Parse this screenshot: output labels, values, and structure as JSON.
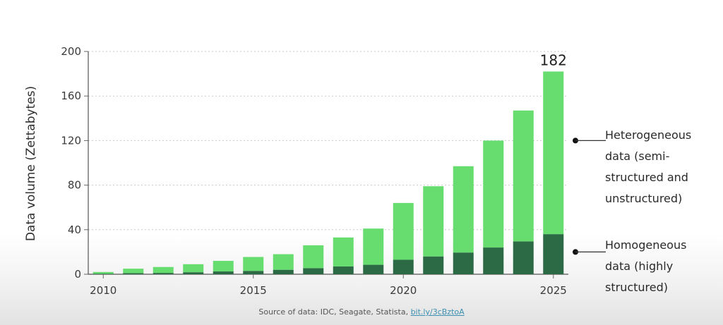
{
  "chart_data": {
    "type": "bar",
    "stacked": true,
    "ylabel": "Data volume (Zettabytes)",
    "xlabel": "",
    "ylim": [
      0,
      200
    ],
    "yticks": [
      0,
      40,
      80,
      120,
      160,
      200
    ],
    "grid": true,
    "x": [
      2010,
      2011,
      2012,
      2013,
      2014,
      2015,
      2016,
      2017,
      2018,
      2019,
      2020,
      2021,
      2022,
      2023,
      2024,
      2025
    ],
    "xticks": [
      "2010",
      "2015",
      "2020",
      "2025"
    ],
    "series": [
      {
        "name": "Homogeneous data (highly structured)",
        "color": "#2b6a44",
        "values": [
          0.5,
          1,
          1.2,
          1.8,
          2.5,
          3,
          4,
          5.5,
          7,
          8.5,
          13,
          16,
          19.5,
          24,
          29.5,
          36
        ]
      },
      {
        "name": "Heterogeneous data (semi-structured and unstructured)",
        "color": "#66dd6e",
        "values": [
          1.5,
          4,
          5.3,
          7.2,
          9.5,
          12.5,
          14,
          20.5,
          26,
          32.5,
          51,
          63,
          77.5,
          96,
          117.5,
          146
        ]
      }
    ],
    "totals": [
      2,
      5,
      6.5,
      9,
      12,
      15.5,
      18,
      26,
      33,
      41,
      64,
      79,
      97,
      120,
      147,
      182
    ],
    "annotations": [
      {
        "x": 2025,
        "text": "182"
      }
    ],
    "legend_position": "right",
    "legend": {
      "heterogeneous_lines": [
        "Heterogeneous",
        "data (semi-",
        "structured and",
        "unstructured)"
      ],
      "homogeneous_lines": [
        "Homogeneous",
        "data (highly",
        "structured)"
      ]
    }
  },
  "footer": {
    "source_text": "Source of data: IDC, Seagate, Statista, ",
    "source_link": "bit.ly/3cBztoA"
  }
}
